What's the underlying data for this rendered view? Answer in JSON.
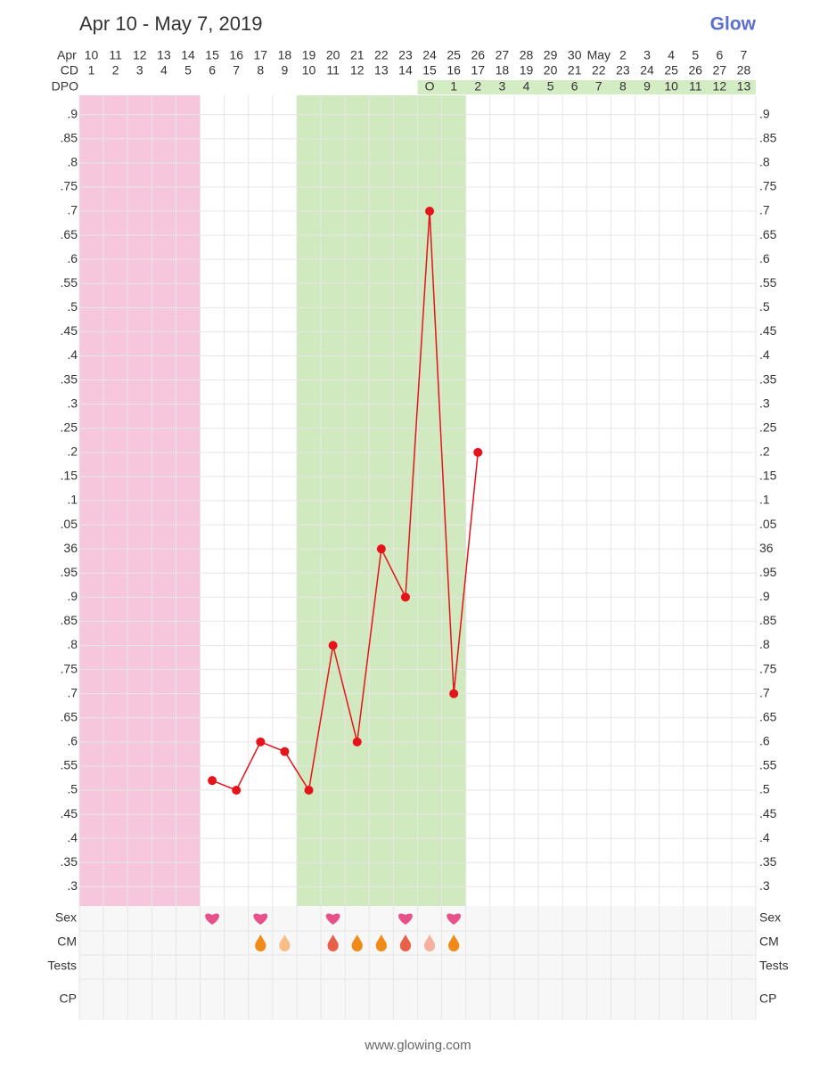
{
  "chart_data": {
    "type": "line",
    "title": "Apr 10 - May 7, 2019",
    "logo": "Glow",
    "footer": "www.glowing.com",
    "row_labels": {
      "month": "Apr",
      "cd": "CD",
      "dpo": "DPO",
      "sex": "Sex",
      "cm": "CM",
      "tests": "Tests",
      "cp": "CP"
    },
    "categories": [
      "10",
      "11",
      "12",
      "13",
      "14",
      "15",
      "16",
      "17",
      "18",
      "19",
      "20",
      "21",
      "22",
      "23",
      "24",
      "25",
      "26",
      "27",
      "28",
      "29",
      "30",
      "May",
      "2",
      "3",
      "4",
      "5",
      "6",
      "7"
    ],
    "weekend": [
      false,
      false,
      false,
      true,
      true,
      false,
      false,
      false,
      false,
      false,
      true,
      true,
      false,
      false,
      false,
      false,
      false,
      true,
      true,
      false,
      false,
      false,
      false,
      false,
      true,
      true,
      false,
      false
    ],
    "weekend_color": "#e01010",
    "cd": [
      1,
      2,
      3,
      4,
      5,
      6,
      7,
      8,
      9,
      10,
      11,
      12,
      13,
      14,
      15,
      16,
      17,
      18,
      19,
      20,
      21,
      22,
      23,
      24,
      25,
      26,
      27,
      28
    ],
    "dpo": [
      null,
      null,
      null,
      null,
      null,
      null,
      null,
      null,
      null,
      null,
      null,
      null,
      null,
      null,
      "O",
      "1",
      "2",
      "3",
      "4",
      "5",
      "6",
      "7",
      "8",
      "9",
      "10",
      "11",
      "12",
      "13"
    ],
    "dpo_color": "#d4ecc4",
    "series": [
      {
        "name": "Temperature",
        "color": "#e5141a",
        "values": [
          null,
          null,
          null,
          null,
          null,
          35.52,
          35.5,
          35.6,
          35.58,
          35.5,
          35.8,
          35.6,
          36.0,
          35.9,
          36.7,
          35.7,
          36.2,
          null,
          null,
          null,
          null,
          null,
          null,
          null,
          null,
          null,
          null,
          null
        ]
      }
    ],
    "bands": [
      {
        "start": 0,
        "end": 4,
        "color": "#f5c3da"
      },
      {
        "start": 9,
        "end": 15,
        "color": "#cfe8bc"
      }
    ],
    "sex": [
      5,
      7,
      10,
      13,
      15
    ],
    "sex_color": "#e8508a",
    "cm": [
      {
        "col": 7,
        "color": "#f08a18"
      },
      {
        "col": 8,
        "color": "#f7be88"
      },
      {
        "col": 10,
        "color": "#e8604a"
      },
      {
        "col": 11,
        "color": "#f08a18"
      },
      {
        "col": 12,
        "color": "#f08a18"
      },
      {
        "col": 13,
        "color": "#e8604a"
      },
      {
        "col": 14,
        "color": "#f5b0a0"
      },
      {
        "col": 15,
        "color": "#f08a18"
      }
    ],
    "ylim": [
      35.26,
      36.94
    ],
    "yticks": [
      {
        "value": 35.3,
        "label": ".3"
      },
      {
        "value": 35.35,
        "label": ".35"
      },
      {
        "value": 35.4,
        "label": ".4"
      },
      {
        "value": 35.45,
        "label": ".45"
      },
      {
        "value": 35.5,
        "label": ".5"
      },
      {
        "value": 35.55,
        "label": ".55"
      },
      {
        "value": 35.6,
        "label": ".6"
      },
      {
        "value": 35.65,
        "label": ".65"
      },
      {
        "value": 35.7,
        "label": ".7"
      },
      {
        "value": 35.75,
        "label": ".75"
      },
      {
        "value": 35.8,
        "label": ".8"
      },
      {
        "value": 35.85,
        "label": ".85"
      },
      {
        "value": 35.9,
        "label": ".9"
      },
      {
        "value": 35.95,
        "label": ".95"
      },
      36,
      {
        "value": 36.05,
        "label": ".05"
      },
      {
        "value": 36.1,
        "label": ".1"
      },
      {
        "value": 36.15,
        "label": ".15"
      },
      {
        "value": 36.2,
        "label": ".2"
      },
      {
        "value": 36.25,
        "label": ".25"
      },
      {
        "value": 36.3,
        "label": ".3"
      },
      {
        "value": 36.35,
        "label": ".35"
      },
      {
        "value": 36.4,
        "label": ".4"
      },
      {
        "value": 36.45,
        "label": ".45"
      },
      {
        "value": 36.5,
        "label": ".5"
      },
      {
        "value": 36.55,
        "label": ".55"
      },
      {
        "value": 36.6,
        "label": ".6"
      },
      {
        "value": 36.65,
        "label": ".65"
      },
      {
        "value": 36.7,
        "label": ".7"
      },
      {
        "value": 36.75,
        "label": ".75"
      },
      {
        "value": 36.8,
        "label": ".8"
      },
      {
        "value": 36.85,
        "label": ".85"
      },
      {
        "value": 36.9,
        "label": ".9"
      }
    ],
    "grid": true
  }
}
